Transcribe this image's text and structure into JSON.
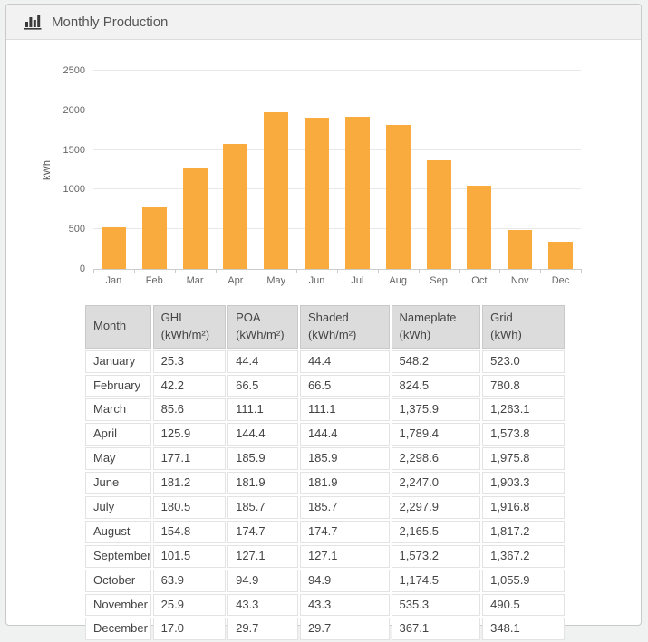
{
  "panel": {
    "title": "Monthly Production"
  },
  "colors": {
    "bar": "#F9AC3D",
    "panel_header_bg": "#F2F2F2",
    "panel_border": "#C9C9C9",
    "grid_line": "#E8E8E8",
    "axis_line": "#CCCCCC",
    "table_header_bg": "#DCDCDC"
  },
  "chart_data": {
    "type": "bar",
    "title": "Monthly Production",
    "categories": [
      "Jan",
      "Feb",
      "Mar",
      "Apr",
      "May",
      "Jun",
      "Jul",
      "Aug",
      "Sep",
      "Oct",
      "Nov",
      "Dec"
    ],
    "values": [
      523.0,
      780.8,
      1263.1,
      1573.8,
      1975.8,
      1903.3,
      1916.8,
      1817.2,
      1367.2,
      1055.9,
      490.5,
      348.1
    ],
    "series_name": "Grid (kWh)",
    "xlabel": "",
    "ylabel": "kWh",
    "ylim": [
      0,
      2500
    ],
    "yticks": [
      0,
      500,
      1000,
      1500,
      2000,
      2500
    ],
    "grid": true,
    "legend": "none"
  },
  "table": {
    "columns": [
      {
        "key": "month",
        "label": "Month",
        "unit": ""
      },
      {
        "key": "ghi",
        "label": "GHI",
        "unit": "(kWh/m²)"
      },
      {
        "key": "poa",
        "label": "POA",
        "unit": "(kWh/m²)"
      },
      {
        "key": "shaded",
        "label": "Shaded",
        "unit": "(kWh/m²)"
      },
      {
        "key": "nameplate",
        "label": "Nameplate",
        "unit": "(kWh)"
      },
      {
        "key": "grid",
        "label": "Grid",
        "unit": "(kWh)"
      }
    ],
    "rows": [
      [
        "January",
        "25.3",
        "44.4",
        "44.4",
        "548.2",
        "523.0"
      ],
      [
        "February",
        "42.2",
        "66.5",
        "66.5",
        "824.5",
        "780.8"
      ],
      [
        "March",
        "85.6",
        "111.1",
        "111.1",
        "1,375.9",
        "1,263.1"
      ],
      [
        "April",
        "125.9",
        "144.4",
        "144.4",
        "1,789.4",
        "1,573.8"
      ],
      [
        "May",
        "177.1",
        "185.9",
        "185.9",
        "2,298.6",
        "1,975.8"
      ],
      [
        "June",
        "181.2",
        "181.9",
        "181.9",
        "2,247.0",
        "1,903.3"
      ],
      [
        "July",
        "180.5",
        "185.7",
        "185.7",
        "2,297.9",
        "1,916.8"
      ],
      [
        "August",
        "154.8",
        "174.7",
        "174.7",
        "2,165.5",
        "1,817.2"
      ],
      [
        "September",
        "101.5",
        "127.1",
        "127.1",
        "1,573.2",
        "1,367.2"
      ],
      [
        "October",
        "63.9",
        "94.9",
        "94.9",
        "1,174.5",
        "1,055.9"
      ],
      [
        "November",
        "25.9",
        "43.3",
        "43.3",
        "535.3",
        "490.5"
      ],
      [
        "December",
        "17.0",
        "29.7",
        "29.7",
        "367.1",
        "348.1"
      ]
    ]
  }
}
